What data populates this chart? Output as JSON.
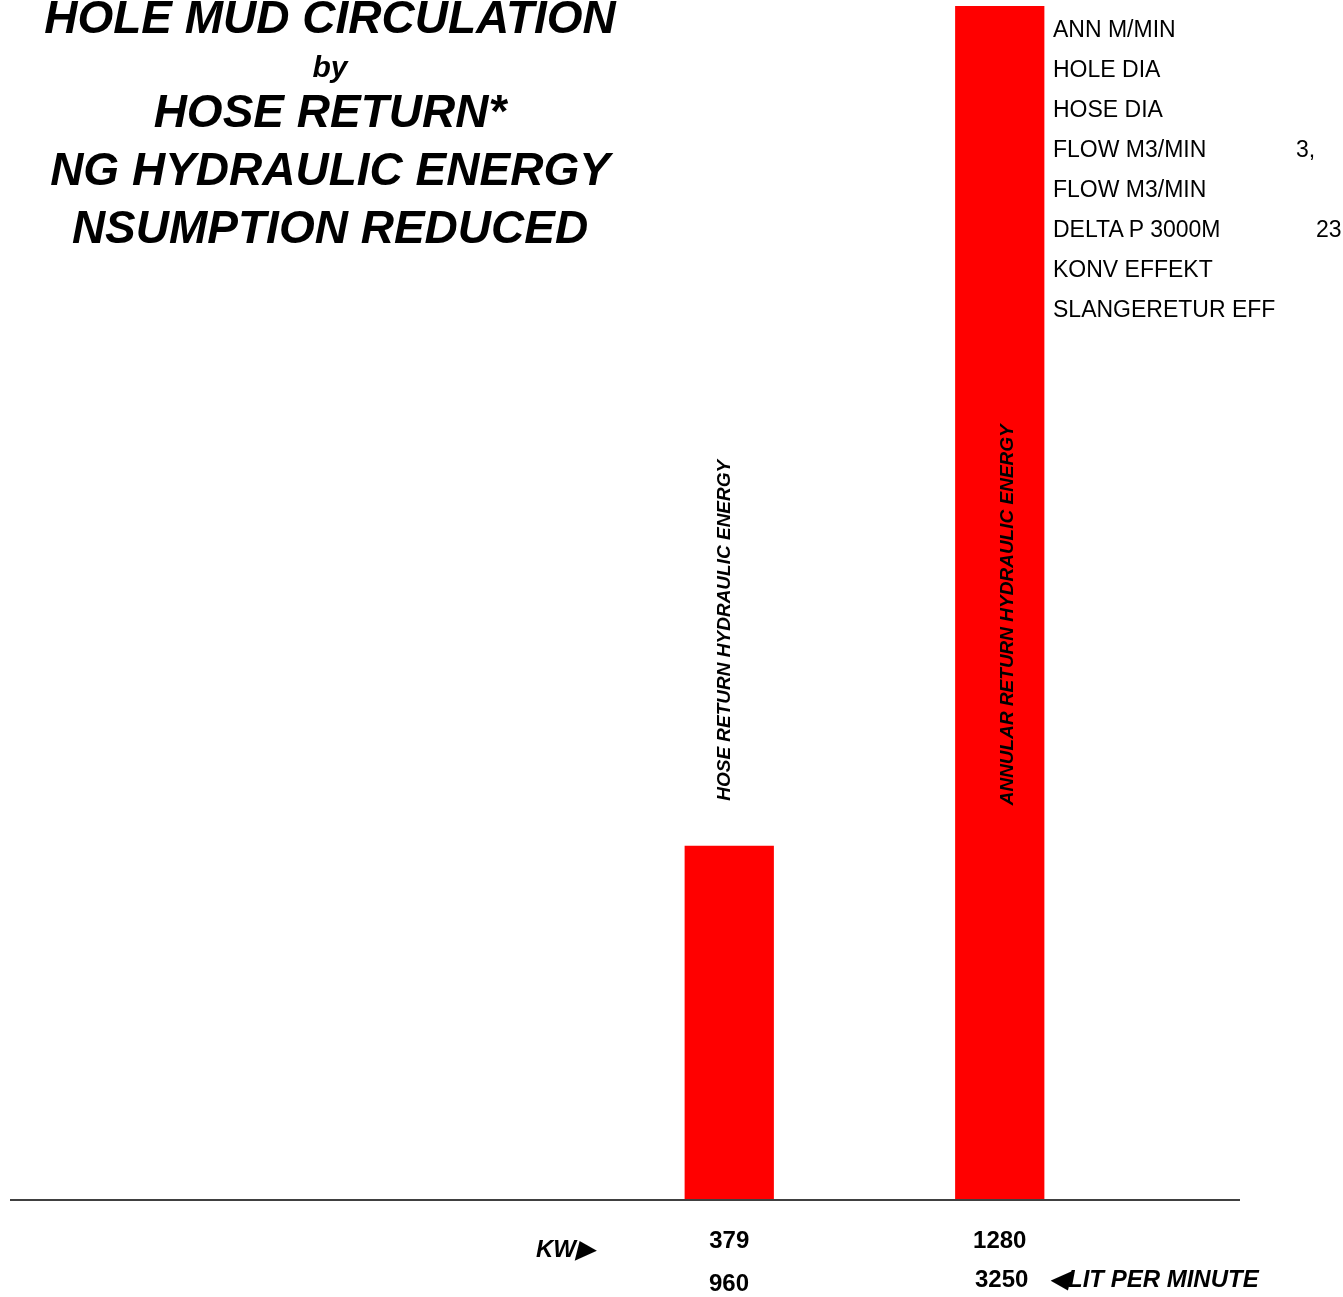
{
  "chart_data": {
    "type": "bar",
    "title": "HOLE MUD CIRCULATION\nby\nHOSE RETURN*\nNG HYDRAULIC ENERGY\nNSUMPTION REDUCED",
    "categories": [
      "HOSE RETURN HYDRAULIC ENERGY",
      "ANNULAR RETURN HYDRAULIC ENERGY"
    ],
    "values": [
      379,
      1280
    ],
    "color": "#ff0000",
    "data_labels": true,
    "grid": false,
    "legend": false,
    "annotations": [
      "ANN M/MIN",
      "HOLE DIA",
      "HOSE DIA",
      "FLOW M3/MIN",
      "FLOW M3/MIN",
      "DELTA P 3000M",
      "KONV EFFEKT",
      "SLANGERETUR EFF",
      "3,",
      "23",
      "KW▶",
      "960",
      "3250",
      "◀LIT PER MINUTE"
    ]
  }
}
